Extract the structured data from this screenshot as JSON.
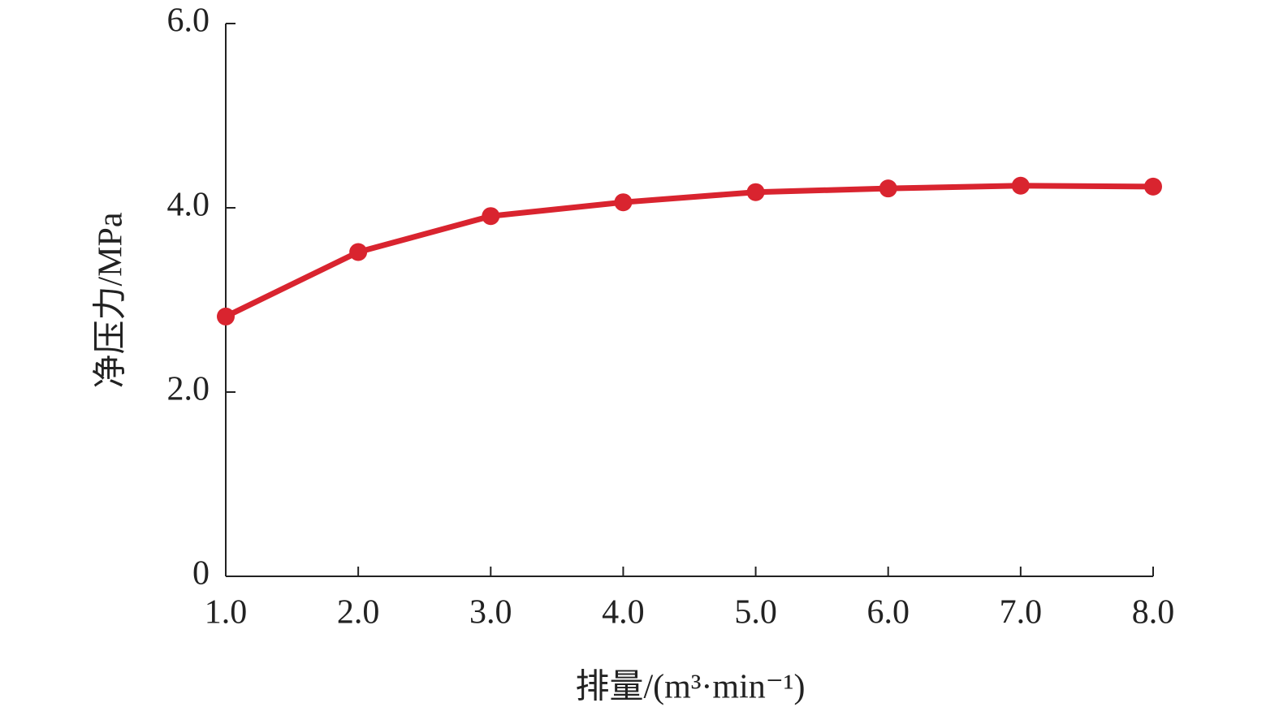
{
  "chart_data": {
    "type": "line",
    "x_label": "排量/(m³·min⁻¹)",
    "y_label": "净压力/MPa",
    "x": [
      1,
      2,
      3,
      4,
      5,
      6,
      7,
      8
    ],
    "values": [
      2.82,
      3.52,
      3.91,
      4.06,
      4.17,
      4.21,
      4.24,
      4.23
    ],
    "color": "#d9242f",
    "xlim": [
      1,
      8
    ],
    "xticks": [
      {
        "value": 1,
        "label": "1.0"
      },
      {
        "value": 2,
        "label": "2.0"
      },
      {
        "value": 3,
        "label": "3.0"
      },
      {
        "value": 4,
        "label": "4.0"
      },
      {
        "value": 5,
        "label": "5.0"
      },
      {
        "value": 6,
        "label": "6.0"
      },
      {
        "value": 7,
        "label": "7.0"
      },
      {
        "value": 8,
        "label": "8.0"
      }
    ],
    "ylim": [
      0,
      6
    ],
    "yticks": [
      0,
      {
        "value": 2,
        "label": "2.0"
      },
      {
        "value": 4,
        "label": "4.0"
      },
      {
        "value": 6,
        "label": "6.0"
      }
    ],
    "grid": false
  }
}
